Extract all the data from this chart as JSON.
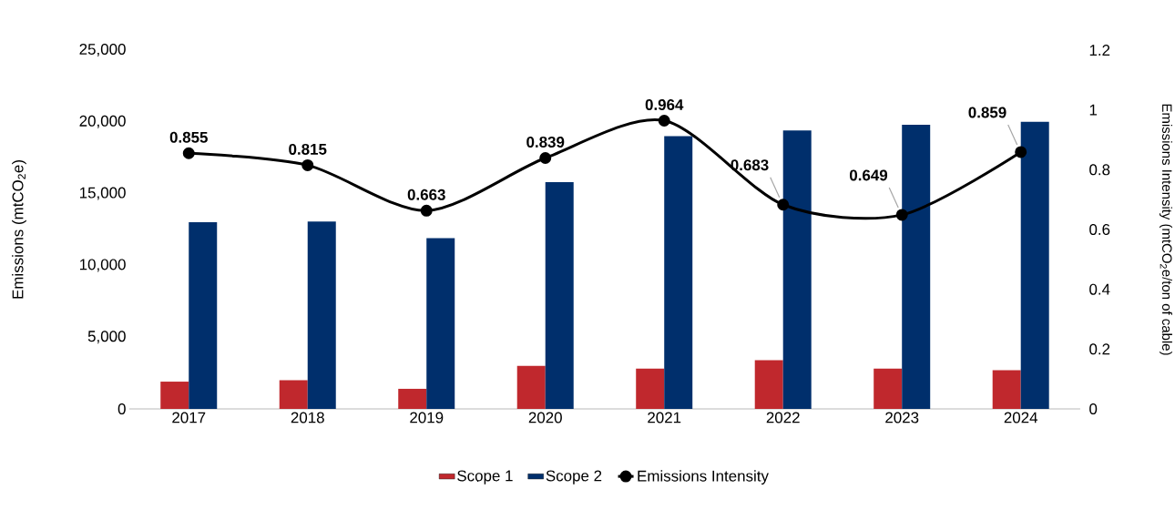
{
  "chart_data": {
    "type": "bar",
    "categories": [
      "2017",
      "2018",
      "2019",
      "2020",
      "2021",
      "2022",
      "2023",
      "2024"
    ],
    "series": [
      {
        "name": "Scope 1",
        "color": "#c0282d",
        "values": [
          1900,
          2000,
          1400,
          3000,
          2800,
          3400,
          2800,
          2700
        ]
      },
      {
        "name": "Scope 2",
        "color": "#002f6c",
        "values": [
          13000,
          13050,
          11900,
          15800,
          19000,
          19400,
          19800,
          20000
        ]
      },
      {
        "name": "Emissions Intensity",
        "type": "line",
        "axis": "y2",
        "color": "#000000",
        "marker": "circle",
        "values": [
          0.855,
          0.815,
          0.663,
          0.839,
          0.964,
          0.683,
          0.649,
          0.859
        ],
        "value_labels": [
          "0.855",
          "0.815",
          "0.663",
          "0.839",
          "0.964",
          "0.683",
          "0.649",
          "0.859"
        ]
      }
    ],
    "ylabel": "Emissions (mtCO$_{2}$e)",
    "y2label": "Emissions Intensity (mtCO$_{2}$e/ton of cable)",
    "ylim": [
      0,
      25000
    ],
    "yticks": [
      0,
      {
        "value": 5000,
        "label": "5,000"
      },
      {
        "value": 10000,
        "label": "10,000"
      },
      {
        "value": 15000,
        "label": "15,000"
      },
      {
        "value": 20000,
        "label": "20,000"
      },
      {
        "value": 25000,
        "label": "25,000"
      }
    ],
    "y2lim": [
      0,
      1.2
    ],
    "y2ticks": [
      0,
      0.2,
      0.4,
      0.6,
      0.8,
      1,
      1.2
    ],
    "legend": "bottom",
    "grid": false
  }
}
